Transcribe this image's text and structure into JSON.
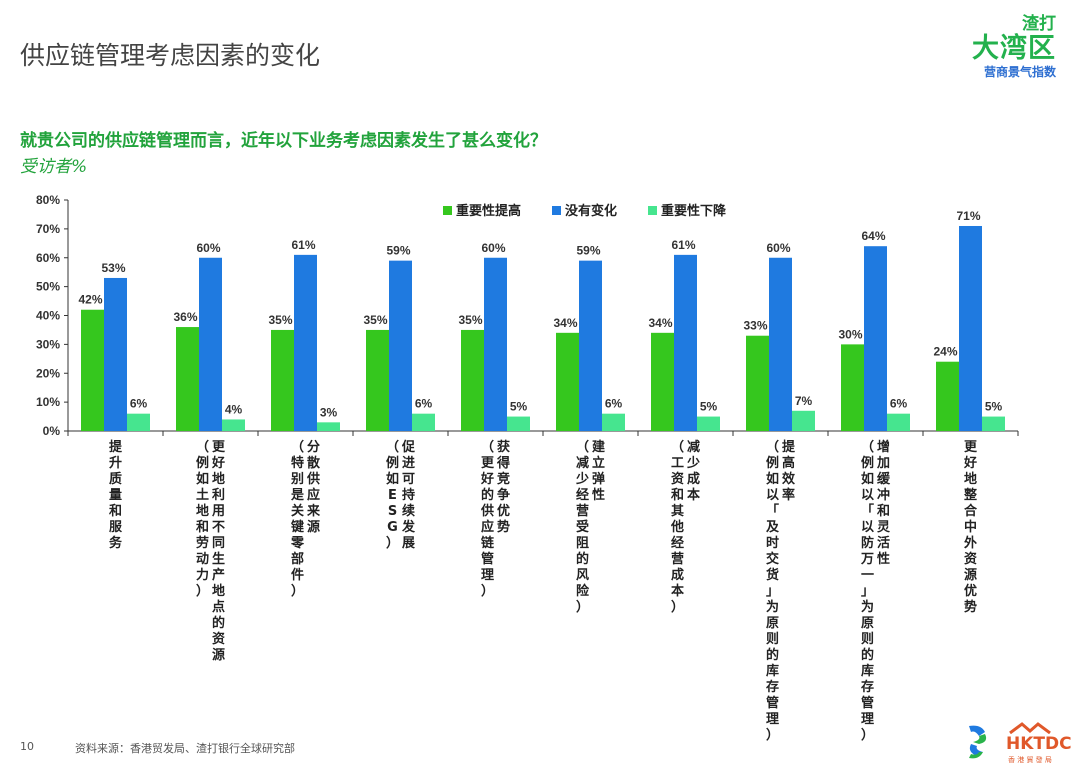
{
  "header": {
    "title": "供应链管理考虑因素的变化",
    "brand_line1": "渣打",
    "brand_line2": "大湾区",
    "brand_line3": "营商景气指数"
  },
  "question": "就贵公司的供应链管理而言，近年以下业务考虑因素发生了甚么变化？",
  "subtitle": "受访者%",
  "footer": {
    "page_number": "10",
    "source": "资料来源：香港贸发局、渣打银行全球研究部",
    "hktdc_text": "HKTDC",
    "hktdc_sub": "香 港 貿 發 局"
  },
  "colors": {
    "green": "#35c71e",
    "blue": "#1f7ae0",
    "light_green": "#46e58f",
    "title_green": "#22a33c",
    "brand_green": "#23b14d"
  },
  "chart_data": {
    "type": "bar",
    "ylim": [
      0,
      80
    ],
    "yticks": [
      "0%",
      "10%",
      "20%",
      "30%",
      "40%",
      "50%",
      "60%",
      "70%",
      "80%"
    ],
    "legend_position": "top",
    "categories": [
      "提升质量和服务",
      "更好地利用不同生产地点的资源（例如土地和劳动力）",
      "分散供应来源（特别是关键零部件）",
      "促进可持续发展（例如ESG）",
      "获得竞争优势（更好的供应链管理）",
      "建立弹性（减少经营受阻的风险）",
      "减少成本（工资和其他经营成本）",
      "提高效率（例如以「及时交货」为原则的库存管理）",
      "增加缓冲和灵活性（例如以「以防万一」为原则的库存管理）",
      "更好地整合中外资源优势"
    ],
    "category_lines": [
      [
        "提升质量和服务"
      ],
      [
        "更好地利用不同生产地点的资源",
        "（例如土地和劳动力）"
      ],
      [
        "分散供应来源",
        "（特别是关键零部件）"
      ],
      [
        "促进可持续发展",
        "（例如ESG）"
      ],
      [
        "获得竞争优势",
        "（更好的供应链管理）"
      ],
      [
        "建立弹性",
        "（减少经营受阻的风险）"
      ],
      [
        "减少成本",
        "（工资和其他经营成本）"
      ],
      [
        "提高效率",
        "（例如以「及时交货」为原则的库存管理）"
      ],
      [
        "增加缓冲和灵活性",
        "（例如以「以防万一」为原则的库存管理）"
      ],
      [
        "更好地整合中外资源优势"
      ]
    ],
    "series": [
      {
        "name": "重要性提高",
        "values": [
          42,
          36,
          35,
          35,
          35,
          34,
          34,
          33,
          30,
          24
        ],
        "labels": [
          "42%",
          "36%",
          "35%",
          "35%",
          "35%",
          "34%",
          "34%",
          "33%",
          "30%",
          "24%"
        ]
      },
      {
        "name": "没有变化",
        "values": [
          53,
          60,
          61,
          59,
          60,
          59,
          61,
          60,
          64,
          71
        ],
        "labels": [
          "53%",
          "60%",
          "61%",
          "59%",
          "60%",
          "59%",
          "61%",
          "60%",
          "64%",
          "71%"
        ]
      },
      {
        "name": "重要性下降",
        "values": [
          6,
          4,
          3,
          6,
          5,
          6,
          5,
          7,
          6,
          5
        ],
        "labels": [
          "6%",
          "4%",
          "3%",
          "6%",
          "5%",
          "6%",
          "5%",
          "7%",
          "6%",
          "5%"
        ]
      }
    ]
  }
}
